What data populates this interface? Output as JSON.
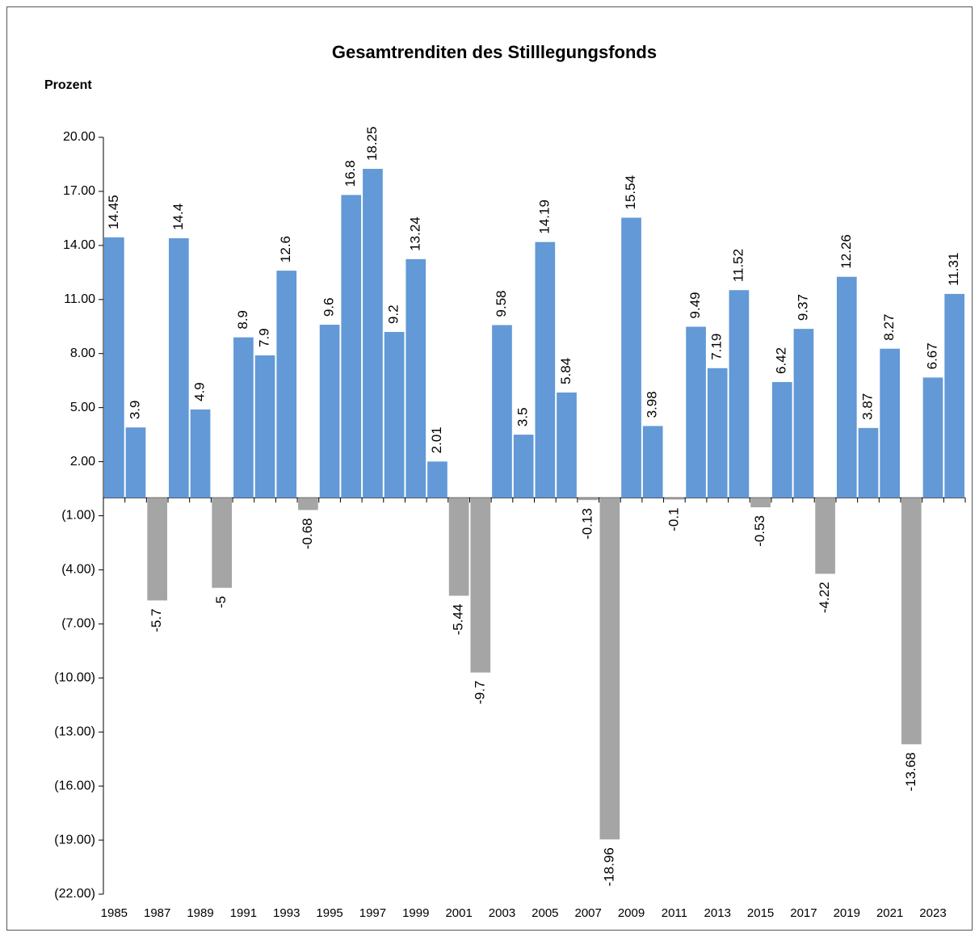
{
  "chart_data": {
    "type": "bar",
    "title": "Gesamtrenditen des Stilllegungsfonds",
    "y_axis_label": "Prozent",
    "categories": [
      "1985",
      null,
      "1987",
      null,
      "1989",
      null,
      "1991",
      null,
      "1993",
      null,
      "1995",
      null,
      "1997",
      null,
      "1999",
      null,
      "2001",
      null,
      "2003",
      null,
      "2005",
      null,
      "2007",
      null,
      "2009",
      null,
      "2011",
      null,
      "2013",
      null,
      "2015",
      null,
      "2017",
      null,
      "2019",
      null,
      "2021",
      null,
      "2023",
      null
    ],
    "values": [
      14.45,
      3.9,
      -5.7,
      14.4,
      4.9,
      -5,
      8.9,
      7.9,
      12.6,
      -0.68,
      9.6,
      16.8,
      18.25,
      9.2,
      13.24,
      2.01,
      -5.44,
      -9.7,
      9.58,
      3.5,
      14.19,
      5.84,
      -0.13,
      -18.96,
      15.54,
      3.98,
      -0.1,
      9.49,
      7.19,
      11.52,
      -0.53,
      6.42,
      9.37,
      -4.22,
      12.26,
      3.87,
      8.27,
      -13.68,
      6.67,
      11.31
    ],
    "positive_color": "#6299d6",
    "negative_color": "#a5a5a5",
    "ylim": [
      -22,
      20
    ],
    "yticks": [
      {
        "value": 20,
        "label": "20.00"
      },
      {
        "value": 17,
        "label": "17.00"
      },
      {
        "value": 14,
        "label": "14.00"
      },
      {
        "value": 11,
        "label": "11.00"
      },
      {
        "value": 8,
        "label": "8.00"
      },
      {
        "value": 5,
        "label": "5.00"
      },
      {
        "value": 2,
        "label": "2.00"
      },
      {
        "value": -1,
        "label": "(1.00)"
      },
      {
        "value": -4,
        "label": "(4.00)"
      },
      {
        "value": -7,
        "label": "(7.00)"
      },
      {
        "value": -10,
        "label": "(10.00)"
      },
      {
        "value": -13,
        "label": "(13.00)"
      },
      {
        "value": -16,
        "label": "(16.00)"
      },
      {
        "value": -19,
        "label": "(19.00)"
      },
      {
        "value": -22,
        "label": "(22.00)"
      }
    ],
    "grid": false
  }
}
